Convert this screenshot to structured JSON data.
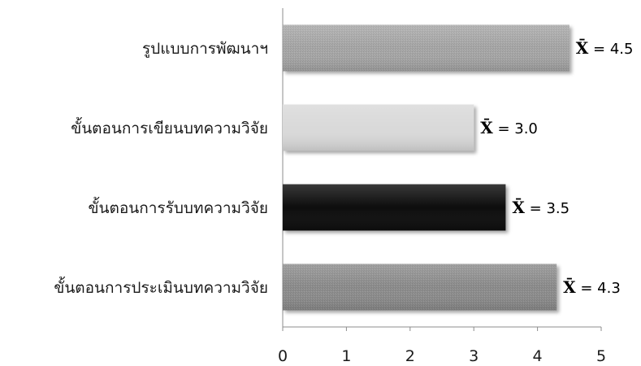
{
  "chart_data": {
    "type": "bar",
    "orientation": "horizontal",
    "categories": [
      "รูปแบบการพัฒนาฯ",
      "ขั้นตอนการเขียนบทความวิจัย",
      "ขั้นตอนการรับบทความวิจัย",
      "ขั้นตอนการประเมินบทความวิจัย"
    ],
    "values": [
      4.5,
      3.0,
      3.5,
      4.3
    ],
    "value_labels": [
      "4.5",
      "3.0",
      "3.5",
      "4.3"
    ],
    "value_prefix_symbol": "X̄",
    "value_separator": " = ",
    "bar_colors": [
      "#a6a6a6",
      "#d9d9d9",
      "#0a0a0a",
      "#8c8c8c"
    ],
    "bar_textured": [
      true,
      false,
      false,
      true
    ],
    "xlim": [
      0,
      5
    ],
    "xticks": [
      "0",
      "1",
      "2",
      "3",
      "4",
      "5"
    ],
    "title": "",
    "xlabel": "",
    "ylabel": "",
    "grid": false,
    "legend": "none"
  }
}
